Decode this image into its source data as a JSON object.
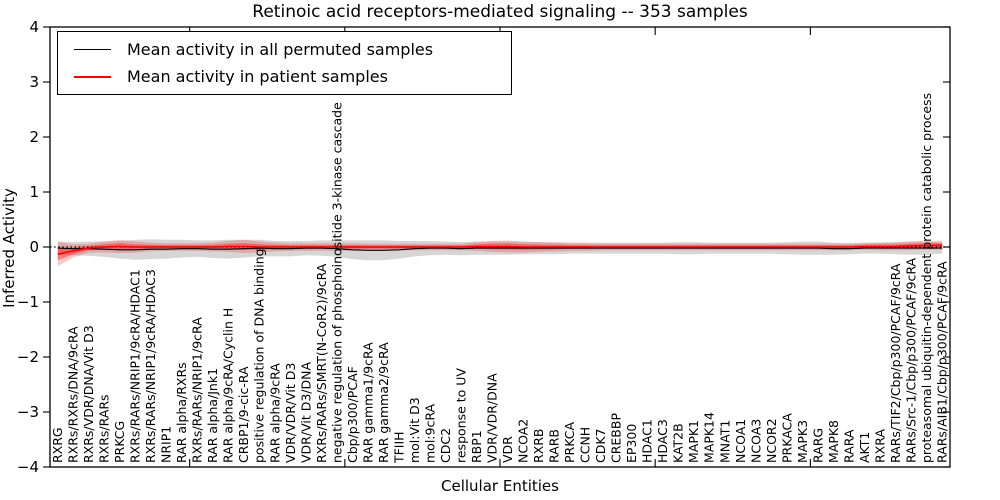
{
  "title": "Retinoic acid receptors-mediated signaling -- 353 samples",
  "colors": {
    "background": "#ffffff",
    "axis": "#000000",
    "permuted_line": "#000000",
    "patient_line": "#ff0000",
    "permuted_band": "rgba(0,0,0,0.16)",
    "patient_band_outer": "rgba(255,0,0,0.22)",
    "patient_band_inner": "rgba(255,0,0,0.38)"
  },
  "chart_data": {
    "type": "line",
    "title": "Retinoic acid receptors-mediated signaling -- 353 samples",
    "xlabel": "Cellular Entities",
    "ylabel": "Inferred Activity",
    "ylim": [
      -4,
      4
    ],
    "ytick_labels": [
      "−4",
      "−3",
      "−2",
      "−1",
      "0",
      "1",
      "2",
      "3",
      "4"
    ],
    "yticks": [
      -4,
      -3,
      -2,
      -1,
      0,
      1,
      2,
      3,
      4
    ],
    "xtick_index": [
      8.5,
      18.5,
      28.5,
      38.5,
      48.5
    ],
    "grid": false,
    "legend_position": "upper left",
    "zero_line": {
      "y": 0,
      "style": "dotted",
      "color": "#000000"
    },
    "categories": [
      "RXRG",
      "RXRs/RXRs/DNA/9cRA",
      "RXRs/VDR/DNA/Vit D3",
      "RXRs/RARs",
      "PRKCG",
      "RXRs/RARs/NRIP1/9cRA/HDAC1",
      "RXRs/RARs/NRIP1/9cRA/HDAC3",
      "NRIP1",
      "RAR alpha/RXRs",
      "RXRs/RARs/NRIP1/9cRA",
      "RAR alpha/Jnk1",
      "RAR alpha/9cRA/Cyclin H",
      "CRBP1/9-cic-RA",
      "positive regulation of DNA binding",
      "RAR alpha/9cRA",
      "VDR/VDR/Vit D3",
      "VDR/Vit D3/DNA",
      "RXRs/RARs/SMRT(N-CoR2)/9cRA",
      "negative regulation of phosphoinositide 3-kinase cascade",
      "Cbp/p300/PCAF",
      "RAR gamma1/9cRA",
      "RAR gamma2/9cRA",
      "TFIIH",
      "mol:Vit D3",
      "mol:9cRA",
      "CDC2",
      "response to UV",
      "RBP1",
      "VDR/VDR/DNA",
      "VDR",
      "NCOA2",
      "RXRB",
      "RARB",
      "PRKCA",
      "CCNH",
      "CDK7",
      "CREBBP",
      "EP300",
      "HDAC1",
      "HDAC3",
      "KAT2B",
      "MAPK1",
      "MAPK14",
      "MNAT1",
      "NCOA1",
      "NCOA3",
      "NCOR2",
      "PRKACA",
      "MAPK3",
      "RARG",
      "MAPK8",
      "RARA",
      "AKT1",
      "RXRA",
      "RARs/TIF2/Cbp/p300/PCAF/9cRA",
      "RARs/Src-1/Cbp/p300/PCAF/9cRA",
      "proteasomal ubiquitin-dependent protein catabolic process",
      "RARs/AIB1/Cbp/p300/PCAF/9cRA"
    ],
    "series": [
      {
        "name": "Mean activity in all permuted samples",
        "color": "#000000",
        "band_color": "rgba(0,0,0,0.16)",
        "values": [
          -0.02,
          -0.03,
          -0.03,
          -0.04,
          -0.05,
          -0.05,
          -0.04,
          -0.04,
          -0.03,
          -0.03,
          -0.04,
          -0.04,
          -0.03,
          -0.02,
          -0.03,
          -0.03,
          -0.02,
          -0.02,
          -0.03,
          -0.05,
          -0.06,
          -0.06,
          -0.05,
          -0.03,
          -0.02,
          -0.02,
          -0.03,
          -0.02,
          -0.02,
          -0.02,
          -0.02,
          -0.02,
          -0.02,
          -0.02,
          -0.02,
          -0.02,
          -0.02,
          -0.02,
          -0.02,
          -0.02,
          -0.02,
          -0.02,
          -0.02,
          -0.02,
          -0.02,
          -0.02,
          -0.02,
          -0.02,
          -0.02,
          -0.02,
          -0.03,
          -0.03,
          -0.02,
          -0.02,
          -0.02,
          -0.02,
          -0.02,
          -0.02
        ],
        "band": [
          0.12,
          0.12,
          0.13,
          0.14,
          0.16,
          0.18,
          0.18,
          0.17,
          0.16,
          0.15,
          0.16,
          0.17,
          0.16,
          0.15,
          0.14,
          0.14,
          0.13,
          0.14,
          0.15,
          0.17,
          0.18,
          0.18,
          0.16,
          0.14,
          0.13,
          0.12,
          0.12,
          0.12,
          0.12,
          0.12,
          0.11,
          0.11,
          0.11,
          0.1,
          0.1,
          0.1,
          0.1,
          0.1,
          0.1,
          0.1,
          0.11,
          0.11,
          0.1,
          0.1,
          0.1,
          0.1,
          0.1,
          0.11,
          0.12,
          0.12,
          0.11,
          0.1,
          0.1,
          0.1,
          0.11,
          0.12,
          0.12,
          0.1
        ]
      },
      {
        "name": "Mean activity in patient samples",
        "color": "#ff0000",
        "band_color": "rgba(255,0,0,0.22)",
        "values": [
          -0.13,
          -0.07,
          -0.02,
          0.0,
          0.01,
          0.0,
          0.0,
          0.0,
          0.0,
          0.0,
          0.0,
          0.01,
          0.01,
          0.0,
          0.0,
          0.0,
          0.0,
          0.0,
          0.0,
          0.0,
          0.0,
          0.0,
          0.0,
          0.0,
          0.0,
          0.0,
          0.0,
          0.01,
          0.01,
          0.01,
          0.0,
          0.0,
          0.0,
          0.0,
          0.0,
          0.0,
          0.0,
          0.0,
          0.0,
          0.0,
          0.0,
          0.0,
          0.0,
          0.0,
          0.0,
          0.0,
          0.0,
          0.0,
          0.0,
          0.0,
          0.0,
          0.0,
          0.01,
          0.01,
          0.01,
          0.02,
          0.03,
          0.03
        ],
        "band": [
          0.22,
          0.12,
          0.08,
          0.1,
          0.12,
          0.1,
          0.08,
          0.07,
          0.07,
          0.07,
          0.08,
          0.1,
          0.12,
          0.1,
          0.08,
          0.07,
          0.07,
          0.07,
          0.07,
          0.07,
          0.06,
          0.06,
          0.06,
          0.06,
          0.06,
          0.06,
          0.06,
          0.08,
          0.1,
          0.11,
          0.1,
          0.09,
          0.08,
          0.07,
          0.07,
          0.06,
          0.06,
          0.06,
          0.06,
          0.06,
          0.06,
          0.06,
          0.06,
          0.06,
          0.06,
          0.06,
          0.06,
          0.06,
          0.06,
          0.06,
          0.06,
          0.06,
          0.06,
          0.07,
          0.07,
          0.08,
          0.08,
          0.08
        ]
      }
    ]
  },
  "legend": {
    "entries": [
      {
        "label": "Mean activity in all permuted samples",
        "color": "#000000"
      },
      {
        "label": "Mean activity in patient samples",
        "color": "#ff0000"
      }
    ]
  }
}
